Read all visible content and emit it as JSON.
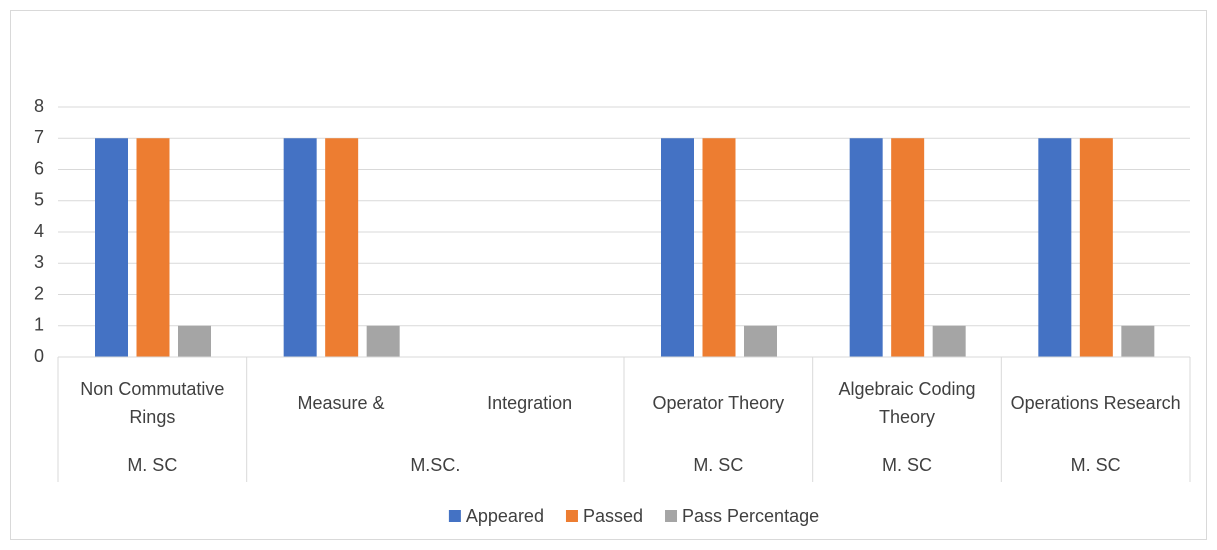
{
  "chart_data": {
    "type": "bar",
    "categories": [
      "Non Commutative Rings",
      "Measure  &",
      "Integration",
      "Operator Theory",
      "Algebraic Coding Theory",
      "Operations Research"
    ],
    "category_groups": [
      "M. SC",
      "M.SC.",
      null,
      "M. SC",
      "M. SC",
      "M. SC"
    ],
    "series": [
      {
        "name": "Appeared",
        "color": "#4472c4",
        "values": [
          7,
          7,
          null,
          7,
          7,
          7
        ]
      },
      {
        "name": "Passed",
        "color": "#ed7d31",
        "values": [
          7,
          7,
          null,
          7,
          7,
          7
        ]
      },
      {
        "name": "Pass Percentage",
        "color": "#a5a5a5",
        "values": [
          1,
          1,
          null,
          1,
          1,
          1
        ]
      }
    ],
    "ylim": [
      0,
      8
    ],
    "yticks": [
      0,
      1,
      2,
      3,
      4,
      5,
      6,
      7,
      8
    ],
    "grid": true,
    "legend": "bottom"
  }
}
